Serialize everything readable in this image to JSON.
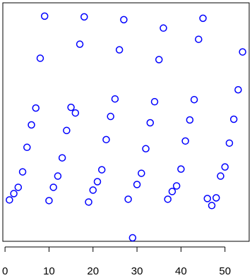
{
  "chart_data": {
    "type": "scatter",
    "title": "",
    "xlabel": "",
    "ylabel": "",
    "xlim": [
      -0.5,
      55.5
    ],
    "ylim": [
      -0.5,
      33.5
    ],
    "xticks": [
      0,
      10,
      20,
      30,
      40,
      50
    ],
    "xtick_labels": [
      "0",
      "10",
      "20",
      "30",
      "40",
      "50"
    ],
    "yticks_shown": false,
    "grid": false,
    "legend": "none",
    "marker": "open-circle",
    "color": "#0000ff",
    "points": [
      {
        "x": 1,
        "y": 5.4
      },
      {
        "x": 2,
        "y": 6.3
      },
      {
        "x": 3,
        "y": 7.2
      },
      {
        "x": 4,
        "y": 9.4
      },
      {
        "x": 5,
        "y": 12.9
      },
      {
        "x": 6,
        "y": 16.1
      },
      {
        "x": 7,
        "y": 18.5
      },
      {
        "x": 8,
        "y": 25.6
      },
      {
        "x": 9,
        "y": 31.6
      },
      {
        "x": 10,
        "y": 5.3
      },
      {
        "x": 11,
        "y": 7.2
      },
      {
        "x": 12,
        "y": 8.8
      },
      {
        "x": 13,
        "y": 11.4
      },
      {
        "x": 14,
        "y": 15.3
      },
      {
        "x": 15,
        "y": 18.6
      },
      {
        "x": 16,
        "y": 17.8
      },
      {
        "x": 17,
        "y": 27.6
      },
      {
        "x": 18,
        "y": 31.5
      },
      {
        "x": 19,
        "y": 5.1
      },
      {
        "x": 20,
        "y": 6.8
      },
      {
        "x": 21,
        "y": 8.0
      },
      {
        "x": 22,
        "y": 9.7
      },
      {
        "x": 23,
        "y": 14.0
      },
      {
        "x": 24,
        "y": 17.3
      },
      {
        "x": 25,
        "y": 19.8
      },
      {
        "x": 26,
        "y": 26.8
      },
      {
        "x": 27,
        "y": 31.1
      },
      {
        "x": 28,
        "y": 5.5
      },
      {
        "x": 29,
        "y": 0.0
      },
      {
        "x": 30,
        "y": 7.6
      },
      {
        "x": 31,
        "y": 9.2
      },
      {
        "x": 32,
        "y": 12.7
      },
      {
        "x": 33,
        "y": 16.4
      },
      {
        "x": 34,
        "y": 19.4
      },
      {
        "x": 35,
        "y": 25.4
      },
      {
        "x": 36,
        "y": 29.9
      },
      {
        "x": 37,
        "y": 5.5
      },
      {
        "x": 38,
        "y": 6.6
      },
      {
        "x": 39,
        "y": 7.4
      },
      {
        "x": 40,
        "y": 9.8
      },
      {
        "x": 41,
        "y": 13.8
      },
      {
        "x": 42,
        "y": 16.8
      },
      {
        "x": 43,
        "y": 19.7
      },
      {
        "x": 44,
        "y": 28.3
      },
      {
        "x": 45,
        "y": 31.3
      },
      {
        "x": 46,
        "y": 5.6
      },
      {
        "x": 47,
        "y": 4.6
      },
      {
        "x": 48,
        "y": 5.7
      },
      {
        "x": 49,
        "y": 8.8
      },
      {
        "x": 50,
        "y": 10.1
      },
      {
        "x": 51,
        "y": 13.5
      },
      {
        "x": 52,
        "y": 16.9
      },
      {
        "x": 53,
        "y": 21.1
      },
      {
        "x": 54,
        "y": 26.5
      }
    ]
  }
}
